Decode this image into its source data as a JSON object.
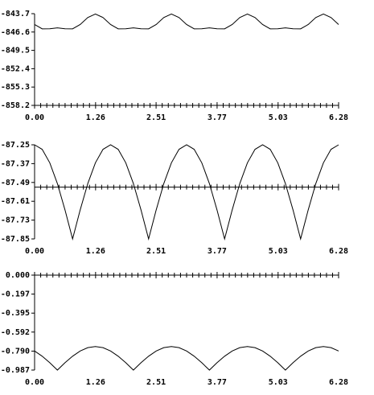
{
  "chart_data": [
    {
      "type": "line",
      "color": "#000000",
      "x": [
        0,
        0.157,
        0.314,
        0.471,
        0.628,
        0.785,
        0.942,
        1.099,
        1.256,
        1.413,
        1.57,
        1.727,
        1.884,
        2.041,
        2.198,
        2.355,
        2.512,
        2.669,
        2.826,
        2.983,
        3.14,
        3.297,
        3.454,
        3.611,
        3.768,
        3.925,
        4.082,
        4.239,
        4.396,
        4.553,
        4.71,
        4.867,
        5.024,
        5.181,
        5.338,
        5.495,
        5.652,
        5.809,
        5.966,
        6.123,
        6.28
      ],
      "values": [
        -845.415,
        -846.095,
        -846.085,
        -845.95,
        -846.085,
        -846.095,
        -845.415,
        -844.305,
        -843.75,
        -844.305,
        -845.415,
        -846.095,
        -846.085,
        -845.95,
        -846.085,
        -846.095,
        -845.415,
        -844.305,
        -843.75,
        -844.305,
        -845.415,
        -846.095,
        -846.085,
        -845.95,
        -846.085,
        -846.095,
        -845.415,
        -844.305,
        -843.75,
        -844.305,
        -845.415,
        -846.095,
        -846.085,
        -845.95,
        -846.085,
        -846.095,
        -845.415,
        -844.305,
        -843.75,
        -844.305,
        -845.415
      ],
      "xlim": [
        0,
        6.28
      ],
      "xticks": [
        {
          "value": 0,
          "label": "0.00"
        },
        1.26,
        2.51,
        3.77,
        5.03,
        6.28
      ],
      "ylim": [
        -858.2,
        -843.7
      ],
      "yticks": [
        -843.7,
        -846.6,
        -849.5,
        -852.4,
        -855.3,
        -858.2
      ],
      "x_axis_at": -858.2
    },
    {
      "type": "line",
      "color": "#000000",
      "x": [
        0,
        0.157,
        0.314,
        0.471,
        0.628,
        0.785,
        0.942,
        1.099,
        1.256,
        1.413,
        1.57,
        1.727,
        1.884,
        2.041,
        2.198,
        2.355,
        2.512,
        2.669,
        2.826,
        2.983,
        3.14,
        3.297,
        3.454,
        3.611,
        3.768,
        3.925,
        4.082,
        4.239,
        4.396,
        4.553,
        4.71,
        4.867,
        5.024,
        5.181,
        5.338,
        5.495,
        5.652,
        5.809,
        5.966,
        6.123,
        6.28
      ],
      "values": [
        -87.25,
        -87.279,
        -87.365,
        -87.497,
        -87.665,
        -87.85,
        -87.665,
        -87.497,
        -87.365,
        -87.279,
        -87.25,
        -87.279,
        -87.365,
        -87.497,
        -87.665,
        -87.85,
        -87.665,
        -87.497,
        -87.365,
        -87.279,
        -87.25,
        -87.279,
        -87.365,
        -87.497,
        -87.665,
        -87.85,
        -87.665,
        -87.497,
        -87.365,
        -87.279,
        -87.25,
        -87.279,
        -87.365,
        -87.497,
        -87.665,
        -87.85,
        -87.665,
        -87.497,
        -87.365,
        -87.279,
        -87.25
      ],
      "xlim": [
        0,
        6.28
      ],
      "xticks": [
        {
          "value": 0,
          "label": "0.00"
        },
        1.26,
        2.51,
        3.77,
        5.03,
        6.28
      ],
      "ylim": [
        -87.85,
        -87.25
      ],
      "yticks": [
        -87.25,
        -87.37,
        -87.49,
        -87.61,
        -87.73,
        -87.85
      ],
      "x_axis_at": -87.52
    },
    {
      "type": "line",
      "color": "#000000",
      "x": [
        0,
        0.157,
        0.314,
        0.471,
        0.628,
        0.785,
        0.942,
        1.099,
        1.256,
        1.413,
        1.57,
        1.727,
        1.884,
        2.041,
        2.198,
        2.355,
        2.512,
        2.669,
        2.826,
        2.983,
        3.14,
        3.297,
        3.454,
        3.611,
        3.768,
        3.925,
        4.082,
        4.239,
        4.396,
        4.553,
        4.71,
        4.867,
        5.024,
        5.181,
        5.338,
        5.495,
        5.652,
        5.809,
        5.966,
        6.123,
        6.28
      ],
      "values": [
        -0.789,
        -0.843,
        -0.911,
        -0.987,
        -0.911,
        -0.843,
        -0.789,
        -0.754,
        -0.742,
        -0.754,
        -0.789,
        -0.843,
        -0.911,
        -0.987,
        -0.911,
        -0.843,
        -0.789,
        -0.754,
        -0.742,
        -0.754,
        -0.789,
        -0.843,
        -0.911,
        -0.987,
        -0.911,
        -0.843,
        -0.789,
        -0.754,
        -0.742,
        -0.754,
        -0.789,
        -0.843,
        -0.911,
        -0.987,
        -0.911,
        -0.843,
        -0.789,
        -0.754,
        -0.742,
        -0.754,
        -0.789
      ],
      "xlim": [
        0,
        6.28
      ],
      "xticks": [
        {
          "value": 0,
          "label": "0.00"
        },
        1.26,
        2.51,
        3.77,
        5.03,
        6.28
      ],
      "ylim": [
        -0.987,
        0
      ],
      "yticks": [
        {
          "value": 0,
          "label": "0.000"
        },
        -0.197,
        -0.395,
        -0.592,
        {
          "value": -0.79,
          "label": "-0.790"
        },
        -0.987
      ],
      "x_axis_at": 0
    }
  ]
}
